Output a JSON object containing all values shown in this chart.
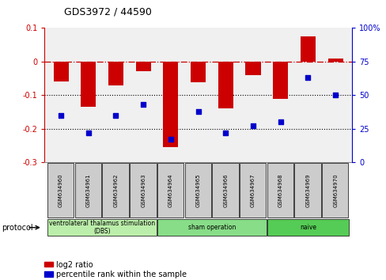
{
  "title": "GDS3972 / 44590",
  "samples": [
    "GSM634960",
    "GSM634961",
    "GSM634962",
    "GSM634963",
    "GSM634964",
    "GSM634965",
    "GSM634966",
    "GSM634967",
    "GSM634968",
    "GSM634969",
    "GSM634970"
  ],
  "log2_ratio": [
    -0.06,
    -0.135,
    -0.07,
    -0.028,
    -0.255,
    -0.062,
    -0.14,
    -0.04,
    -0.11,
    0.075,
    0.01
  ],
  "percentile_rank": [
    35,
    22,
    35,
    43,
    17,
    38,
    22,
    27,
    30,
    63,
    50
  ],
  "bar_color": "#cc0000",
  "dot_color": "#0000cc",
  "ylim_left": [
    -0.3,
    0.1
  ],
  "ylim_right": [
    0,
    100
  ],
  "yticks_left": [
    -0.3,
    -0.2,
    -0.1,
    0.0,
    0.1
  ],
  "yticks_right": [
    0,
    25,
    50,
    75,
    100
  ],
  "groups": [
    {
      "label": "ventrolateral thalamus stimulation\n(DBS)",
      "start": 0,
      "end": 3,
      "color": "#bbeeaa"
    },
    {
      "label": "sham operation",
      "start": 4,
      "end": 7,
      "color": "#88dd88"
    },
    {
      "label": "naive",
      "start": 8,
      "end": 10,
      "color": "#55cc55"
    }
  ],
  "legend_bar_label": "log2 ratio",
  "legend_dot_label": "percentile rank within the sample",
  "protocol_label": "protocol",
  "chart_bg": "#f0f0f0",
  "background_color": "#ffffff",
  "dashed_line_color": "#cc0000",
  "dotted_line_color": "#000000",
  "sample_box_color": "#cccccc"
}
